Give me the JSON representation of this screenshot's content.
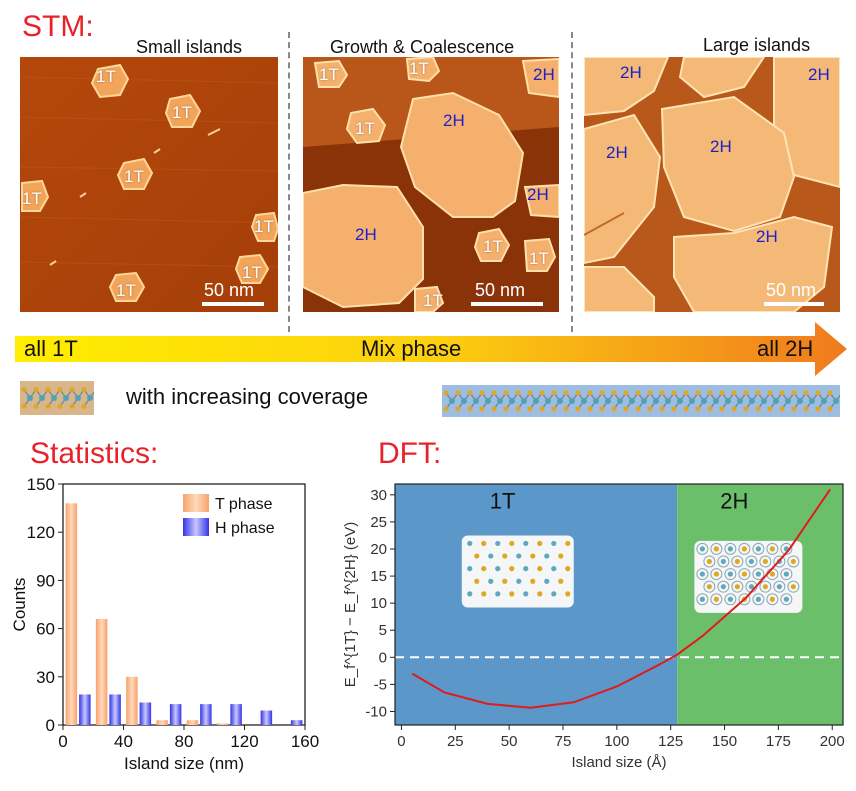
{
  "stm": {
    "section_title": "STM:",
    "panels": [
      {
        "title": "Small islands",
        "scale_bar": "50 nm",
        "labels": [
          {
            "text": "1T",
            "phase": "T"
          },
          {
            "text": "1T",
            "phase": "T"
          },
          {
            "text": "1T",
            "phase": "T"
          },
          {
            "text": "1T",
            "phase": "T"
          },
          {
            "text": "1T",
            "phase": "T"
          },
          {
            "text": "1T",
            "phase": "T"
          },
          {
            "text": "1T",
            "phase": "T"
          }
        ]
      },
      {
        "title": "Growth & Coalescence",
        "scale_bar": "50 nm",
        "labels": [
          {
            "text": "1T",
            "phase": "T"
          },
          {
            "text": "1T",
            "phase": "T"
          },
          {
            "text": "2H",
            "phase": "H"
          },
          {
            "text": "1T",
            "phase": "T"
          },
          {
            "text": "2H",
            "phase": "H"
          },
          {
            "text": "2H",
            "phase": "H"
          },
          {
            "text": "2H",
            "phase": "H"
          },
          {
            "text": "1T",
            "phase": "T"
          },
          {
            "text": "1T",
            "phase": "T"
          },
          {
            "text": "1T",
            "phase": "T"
          }
        ]
      },
      {
        "title": "Large islands",
        "scale_bar": "50 nm",
        "labels": [
          {
            "text": "2H",
            "phase": "H"
          },
          {
            "text": "2H",
            "phase": "H"
          },
          {
            "text": "2H",
            "phase": "H"
          },
          {
            "text": "2H",
            "phase": "H"
          },
          {
            "text": "2H",
            "phase": "H"
          }
        ]
      }
    ]
  },
  "gradient_arrow": {
    "left": "all 1T",
    "middle": "Mix phase",
    "right": "all 2H",
    "color_start": "#ffee00",
    "color_end": "#f07a1e"
  },
  "coverage_text": "with increasing coverage",
  "statistics": {
    "section_title": "Statistics:"
  },
  "dft": {
    "section_title": "DFT:",
    "region_1t_label": "1T",
    "region_2h_label": "2H"
  },
  "colors": {
    "section_title": "#e8222a",
    "t_phase": "#f7a26a",
    "h_phase": "#3434e6",
    "dft_1t_bg": "#5b97c9",
    "dft_2h_bg": "#6cbf6a",
    "dft_curve": "#e01b1b"
  },
  "chart_data": [
    {
      "type": "bar",
      "xlabel": "Island size (nm)",
      "ylabel": "Counts",
      "xlim": [
        0,
        160
      ],
      "ylim": [
        0,
        150
      ],
      "xticks": [
        0,
        40,
        80,
        120,
        160
      ],
      "yticks": [
        0,
        30,
        60,
        90,
        120,
        150
      ],
      "legend_position": "top-right",
      "bin_centers": [
        10,
        30,
        50,
        70,
        90,
        110,
        130,
        150
      ],
      "series": [
        {
          "name": "T phase",
          "values": [
            138,
            66,
            30,
            3,
            3,
            1,
            0,
            0
          ]
        },
        {
          "name": "H phase",
          "values": [
            19,
            19,
            14,
            13,
            13,
            13,
            9,
            3
          ]
        }
      ]
    },
    {
      "type": "line",
      "xlabel": "Island size (Å)",
      "ylabel": "E_f^{1T} − E_f^{2H} (eV)",
      "xlim": [
        -3,
        205
      ],
      "ylim": [
        -12.5,
        32
      ],
      "xticks": [
        0,
        25,
        50,
        75,
        100,
        125,
        150,
        175,
        200
      ],
      "yticks": [
        -10,
        -5,
        0,
        5,
        10,
        15,
        20,
        25,
        30
      ],
      "phase_boundary_x": 128,
      "zero_line": true,
      "series": [
        {
          "x": [
            5,
            20,
            40,
            60,
            80,
            100,
            120,
            128,
            140,
            160,
            180,
            199
          ],
          "y": [
            -3,
            -6.5,
            -8.6,
            -9.3,
            -8.3,
            -5.4,
            -1.3,
            0.5,
            4.0,
            11.0,
            19.9,
            31.0
          ]
        }
      ]
    }
  ]
}
